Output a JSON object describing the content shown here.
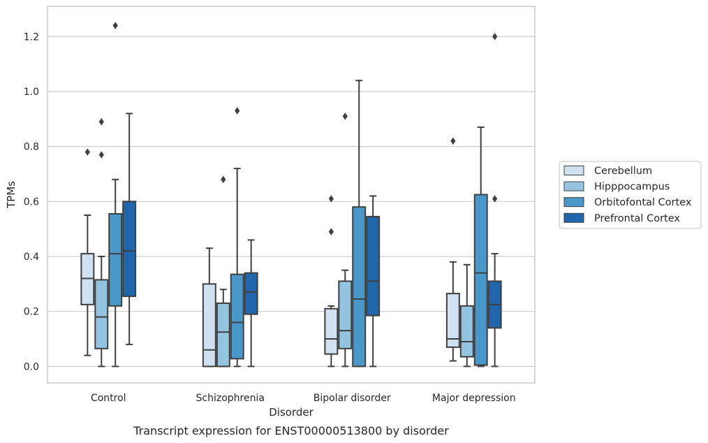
{
  "caption": "Transcript expression for ENST00000513800 by disorder",
  "chart_data": {
    "type": "box",
    "xlabel": "Disorder",
    "ylabel": "TPMs",
    "ylim": [
      -0.06,
      1.31
    ],
    "yticks": [
      0.0,
      0.2,
      0.4,
      0.6,
      0.8,
      1.0,
      1.2
    ],
    "ytick_labels": [
      "0.0",
      "0.2",
      "0.4",
      "0.6",
      "0.8",
      "1.0",
      "1.2"
    ],
    "grid": "horizontal",
    "legend_position": "right",
    "categories": [
      "Control",
      "Schizophrenia",
      "Bipolar disorder",
      "Major depression"
    ],
    "series": [
      {
        "name": "Cerebellum",
        "color": "#d0e1f2",
        "boxes": [
          {
            "whisker_low": 0.04,
            "q1": 0.225,
            "median": 0.32,
            "q3": 0.41,
            "whisker_high": 0.55,
            "outliers": [
              0.78
            ]
          },
          {
            "whisker_low": 0.0,
            "q1": 0.0,
            "median": 0.06,
            "q3": 0.3,
            "whisker_high": 0.43,
            "outliers": []
          },
          {
            "whisker_low": 0.0,
            "q1": 0.045,
            "median": 0.1,
            "q3": 0.21,
            "whisker_high": 0.22,
            "outliers": [
              0.49,
              0.61
            ]
          },
          {
            "whisker_low": 0.02,
            "q1": 0.07,
            "median": 0.1,
            "q3": 0.265,
            "whisker_high": 0.38,
            "outliers": [
              0.82
            ]
          }
        ]
      },
      {
        "name": "Hipppocampus",
        "color": "#94c4df",
        "boxes": [
          {
            "whisker_low": 0.0,
            "q1": 0.065,
            "median": 0.18,
            "q3": 0.315,
            "whisker_high": 0.4,
            "outliers": [
              0.77,
              0.89
            ]
          },
          {
            "whisker_low": 0.0,
            "q1": 0.0,
            "median": 0.125,
            "q3": 0.23,
            "whisker_high": 0.28,
            "outliers": [
              0.68
            ]
          },
          {
            "whisker_low": 0.0,
            "q1": 0.065,
            "median": 0.13,
            "q3": 0.31,
            "whisker_high": 0.35,
            "outliers": [
              0.91
            ]
          },
          {
            "whisker_low": 0.0,
            "q1": 0.035,
            "median": 0.09,
            "q3": 0.22,
            "whisker_high": 0.37,
            "outliers": []
          }
        ]
      },
      {
        "name": "Orbitofontal Cortex",
        "color": "#4a98c9",
        "boxes": [
          {
            "whisker_low": 0.0,
            "q1": 0.22,
            "median": 0.41,
            "q3": 0.555,
            "whisker_high": 0.68,
            "outliers": [
              1.24
            ]
          },
          {
            "whisker_low": 0.0,
            "q1": 0.028,
            "median": 0.16,
            "q3": 0.335,
            "whisker_high": 0.72,
            "outliers": [
              0.93
            ]
          },
          {
            "whisker_low": 0.0,
            "q1": 0.0,
            "median": 0.245,
            "q3": 0.58,
            "whisker_high": 1.04,
            "outliers": []
          },
          {
            "whisker_low": 0.0,
            "q1": 0.005,
            "median": 0.34,
            "q3": 0.625,
            "whisker_high": 0.87,
            "outliers": []
          }
        ]
      },
      {
        "name": "Prefrontal Cortex",
        "color": "#2165ab",
        "boxes": [
          {
            "whisker_low": 0.08,
            "q1": 0.255,
            "median": 0.42,
            "q3": 0.6,
            "whisker_high": 0.92,
            "outliers": []
          },
          {
            "whisker_low": 0.0,
            "q1": 0.19,
            "median": 0.27,
            "q3": 0.34,
            "whisker_high": 0.46,
            "outliers": []
          },
          {
            "whisker_low": 0.0,
            "q1": 0.185,
            "median": 0.31,
            "q3": 0.545,
            "whisker_high": 0.62,
            "outliers": []
          },
          {
            "whisker_low": 0.0,
            "q1": 0.14,
            "median": 0.225,
            "q3": 0.31,
            "whisker_high": 0.41,
            "outliers": [
              0.61,
              1.2
            ]
          }
        ]
      }
    ]
  }
}
